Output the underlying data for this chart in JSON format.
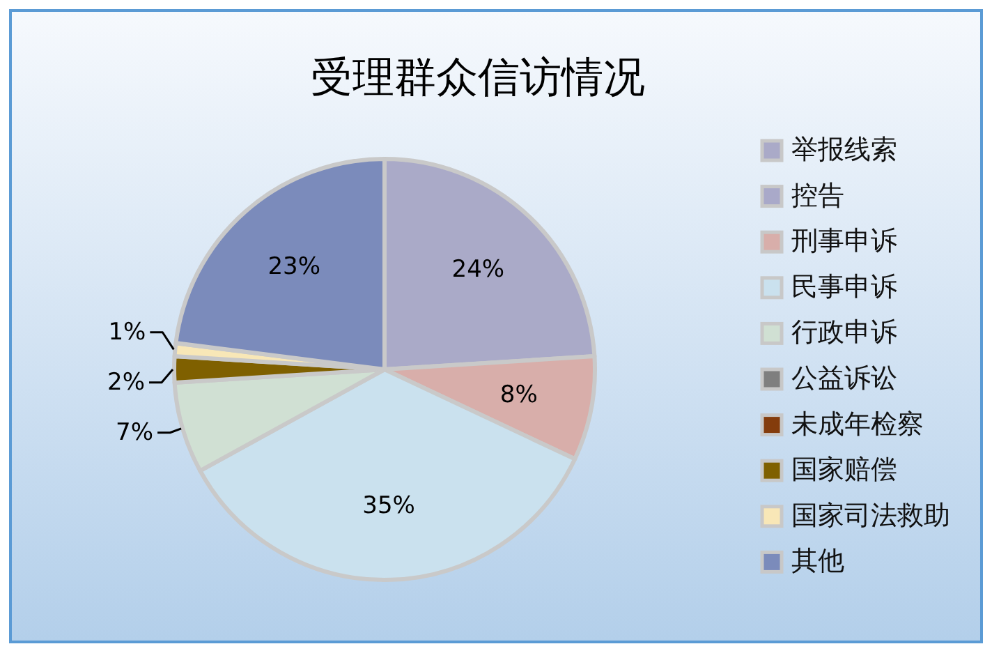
{
  "chart_data": {
    "type": "pie",
    "title": "受理群众信访情况",
    "categories": [
      "举报线索",
      "控告",
      "刑事申诉",
      "民事申诉",
      "行政申诉",
      "公益诉讼",
      "未成年检察",
      "国家赔偿",
      "国家司法救助",
      "其他"
    ],
    "values": [
      24,
      0,
      8,
      35,
      7,
      0,
      0,
      2,
      1,
      23
    ],
    "colors": [
      "#aaaac8",
      "#a9a9c9",
      "#d8aeaa",
      "#cae1ee",
      "#d0e0d3",
      "#7f7f7f",
      "#843c0c",
      "#7f6000",
      "#f8e7b7",
      "#7b8bbb"
    ],
    "value_labels": [
      "24%",
      null,
      "8%",
      "35%",
      "7%",
      null,
      null,
      "2%",
      "1%",
      "23%"
    ],
    "legend": "right"
  }
}
